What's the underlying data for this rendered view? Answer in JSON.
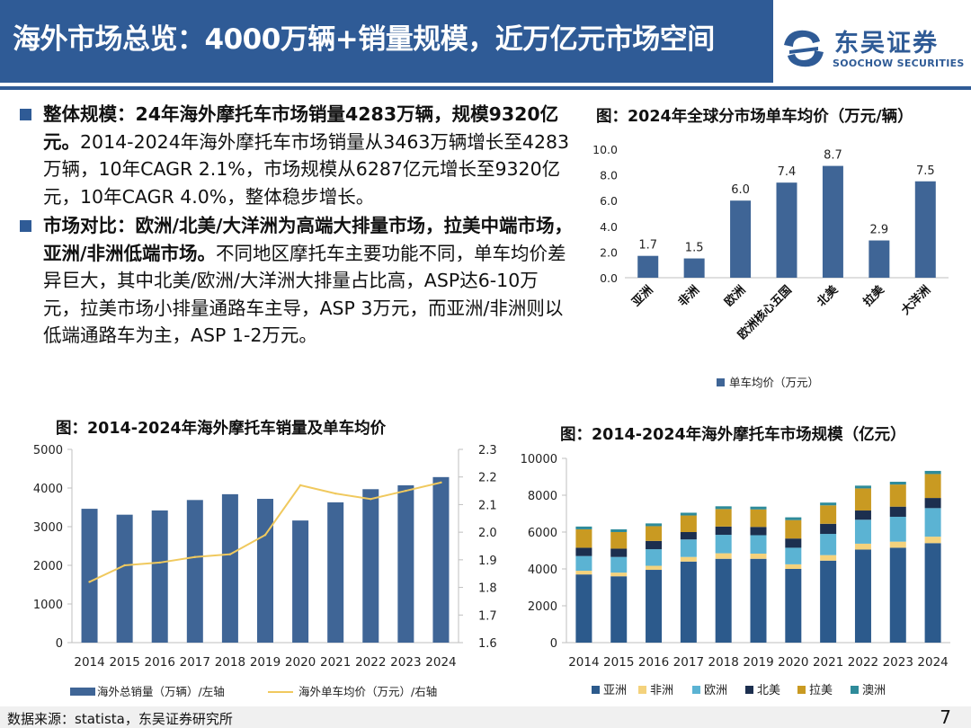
{
  "header": {
    "title": "海外市场总览：4000万辆+销量规模，近万亿元市场空间",
    "logo_cn": "东吴证券",
    "logo_en": "SOOCHOW SECURITIES"
  },
  "bullets": [
    {
      "bold": "整体规模：24年海外摩托车市场销量4283万辆，规模9320亿元。",
      "text": "2014-2024年海外摩托车市场销量从3463万辆增长至4283万辆，10年CAGR 2.1%，市场规模从6287亿元增长至9320亿元，10年CAGR 4.0%，整体稳步增长。"
    },
    {
      "bold": "市场对比：欧洲/北美/大洋洲为高端大排量市场，拉美中端市场，亚洲/非洲低端市场。",
      "text": "不同地区摩托车主要功能不同，单车均价差异巨大，其中北美/欧洲/大洋洲大排量占比高，ASP达6-10万元，拉美市场小排量通路车主导，ASP 3万元，而亚洲/非洲则以低端通路车为主，ASP 1-2万元。"
    }
  ],
  "charts": {
    "asp_title": "图：2024年全球分市场单车均价（万元/辆）",
    "sales_title": "图：2014-2024年海外摩托车销量及单车均价",
    "market_title": "图：2014-2024年海外摩托车市场规模（亿元）"
  },
  "footer": {
    "source": "数据来源：statista，东吴证券研究所",
    "page": "7"
  },
  "colors": {
    "brand": "#2f5b96",
    "bar": "#3f6596",
    "line": "#f0c95e",
    "asia": "#2c5a8c",
    "africa": "#f4d27c",
    "europe": "#5bb3d3",
    "north_america": "#1c2f4f",
    "latam": "#c99a22",
    "oceania": "#2e8b9a"
  },
  "chart_data": [
    {
      "type": "bar",
      "title": "图：2024年全球分市场单车均价（万元/辆）",
      "categories": [
        "亚洲",
        "非洲",
        "欧洲",
        "欧洲核心五国",
        "北美",
        "拉美",
        "大洋洲"
      ],
      "series": [
        {
          "name": "单车均价（万元）",
          "values": [
            1.7,
            1.5,
            6.0,
            7.4,
            8.7,
            2.9,
            7.5
          ]
        }
      ],
      "data_labels": [
        "1.7",
        "1.5",
        "6.0",
        "7.4",
        "8.7",
        "2.9",
        "7.5"
      ],
      "yticks": [
        "0.0",
        "2.0",
        "4.0",
        "6.0",
        "8.0",
        "10.0"
      ],
      "ylim": [
        0,
        10
      ],
      "legend": "bottom"
    },
    {
      "type": "bar",
      "title": "图：2014-2024年海外摩托车销量及单车均价",
      "categories": [
        "2014",
        "2015",
        "2016",
        "2017",
        "2018",
        "2019",
        "2020",
        "2021",
        "2022",
        "2023",
        "2024"
      ],
      "series": [
        {
          "name": "海外总销量（万辆）/左轴",
          "type": "bar",
          "axis": "left",
          "values": [
            3463,
            3310,
            3420,
            3690,
            3840,
            3720,
            3160,
            3630,
            3970,
            4070,
            4283
          ]
        },
        {
          "name": "海外单车均价（万元）/右轴",
          "type": "line",
          "axis": "right",
          "values": [
            1.82,
            1.88,
            1.89,
            1.91,
            1.92,
            1.99,
            2.17,
            2.14,
            2.12,
            2.15,
            2.18
          ]
        }
      ],
      "yticks_left": [
        "0",
        "1000",
        "2000",
        "3000",
        "4000",
        "5000"
      ],
      "yticks_right": [
        "1.6",
        "1.7",
        "1.8",
        "1.9",
        "2.0",
        "2.1",
        "2.2",
        "2.3"
      ],
      "ylim_left": [
        0,
        5000
      ],
      "ylim_right": [
        1.6,
        2.3
      ],
      "legend": "bottom"
    },
    {
      "type": "bar",
      "stacked": true,
      "title": "图：2014-2024年海外摩托车市场规模（亿元）",
      "categories": [
        "2014",
        "2015",
        "2016",
        "2017",
        "2018",
        "2019",
        "2020",
        "2021",
        "2022",
        "2023",
        "2024"
      ],
      "series": [
        {
          "name": "亚洲",
          "values": [
            3700,
            3600,
            3950,
            4400,
            4550,
            4550,
            4000,
            4450,
            5050,
            5150,
            5400
          ]
        },
        {
          "name": "非洲",
          "values": [
            200,
            200,
            220,
            250,
            300,
            280,
            250,
            300,
            320,
            330,
            350
          ]
        },
        {
          "name": "欧洲",
          "values": [
            800,
            850,
            900,
            950,
            1000,
            1000,
            900,
            1150,
            1300,
            1350,
            1550
          ]
        },
        {
          "name": "北美",
          "values": [
            450,
            450,
            450,
            400,
            450,
            450,
            500,
            550,
            500,
            550,
            550
          ]
        },
        {
          "name": "拉美",
          "values": [
            1000,
            900,
            800,
            900,
            950,
            950,
            1000,
            1000,
            1200,
            1200,
            1300
          ]
        },
        {
          "name": "澳洲",
          "values": [
            150,
            150,
            150,
            150,
            150,
            150,
            150,
            150,
            150,
            150,
            170
          ]
        }
      ],
      "yticks": [
        "0",
        "2000",
        "4000",
        "6000",
        "8000",
        "10000"
      ],
      "ylim": [
        0,
        10000
      ],
      "legend": "bottom"
    }
  ]
}
